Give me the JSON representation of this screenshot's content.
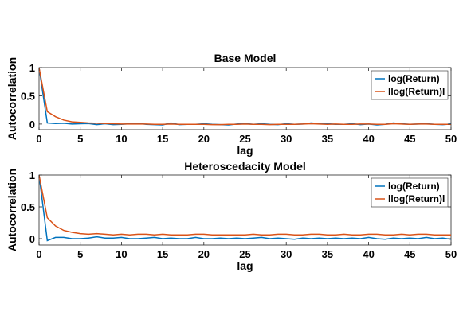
{
  "chart_data": [
    {
      "type": "line",
      "title": "Base Model",
      "xlabel": "lag",
      "ylabel": "Autocorrelation",
      "xlim": [
        0,
        50
      ],
      "ylim": [
        -0.1,
        1
      ],
      "xticks": [
        0,
        5,
        10,
        15,
        20,
        25,
        30,
        35,
        40,
        45,
        50
      ],
      "yticks": [
        0,
        0.5,
        1
      ],
      "grid": false,
      "legend_position": "top-right",
      "x": [
        0,
        1,
        2,
        3,
        4,
        5,
        6,
        7,
        8,
        9,
        10,
        11,
        12,
        13,
        14,
        15,
        16,
        17,
        18,
        19,
        20,
        21,
        22,
        23,
        24,
        25,
        26,
        27,
        28,
        29,
        30,
        31,
        32,
        33,
        34,
        35,
        36,
        37,
        38,
        39,
        40,
        41,
        42,
        43,
        44,
        45,
        46,
        47,
        48,
        49,
        50
      ],
      "series": [
        {
          "name": "log(Return)",
          "color": "#0072BD",
          "values": [
            1,
            0.02,
            0.01,
            0.015,
            0.0,
            0.005,
            0.01,
            -0.01,
            0.005,
            -0.01,
            -0.005,
            0.005,
            0.015,
            -0.005,
            -0.01,
            -0.015,
            0.02,
            -0.01,
            -0.005,
            -0.005,
            0.005,
            -0.005,
            -0.01,
            -0.015,
            0.0,
            0.01,
            -0.005,
            0.005,
            -0.005,
            -0.01,
            0.005,
            -0.005,
            0.0,
            0.02,
            0.01,
            0.005,
            -0.005,
            -0.005,
            0.005,
            -0.01,
            0.0,
            -0.015,
            -0.005,
            0.02,
            0.005,
            -0.005,
            0.0,
            0.005,
            -0.005,
            -0.01,
            0.0
          ]
        },
        {
          "name": "llog(Return)l",
          "color": "#D95319",
          "values": [
            1,
            0.22,
            0.13,
            0.07,
            0.04,
            0.03,
            0.02,
            0.015,
            0.01,
            0.005,
            0.0,
            0.0,
            0.0,
            0.0,
            -0.005,
            -0.005,
            0.0,
            -0.005,
            -0.005,
            -0.005,
            -0.005,
            -0.01,
            -0.01,
            -0.005,
            -0.005,
            0.0,
            -0.005,
            -0.005,
            -0.01,
            -0.005,
            -0.005,
            -0.005,
            0.0,
            0.005,
            0.0,
            -0.005,
            0.0,
            -0.005,
            -0.005,
            0.0,
            0.0,
            -0.005,
            -0.005,
            0.005,
            0.0,
            -0.005,
            0.0,
            0.0,
            -0.005,
            -0.005,
            -0.005
          ]
        }
      ]
    },
    {
      "type": "line",
      "title": "Heteroscedacity Model",
      "xlabel": "lag",
      "ylabel": "Autocorrelation",
      "xlim": [
        0,
        50
      ],
      "ylim": [
        -0.1,
        1
      ],
      "xticks": [
        0,
        5,
        10,
        15,
        20,
        25,
        30,
        35,
        40,
        45,
        50
      ],
      "yticks": [
        0,
        0.5,
        1
      ],
      "grid": false,
      "legend_position": "top-right",
      "x": [
        0,
        1,
        2,
        3,
        4,
        5,
        6,
        7,
        8,
        9,
        10,
        11,
        12,
        13,
        14,
        15,
        16,
        17,
        18,
        19,
        20,
        21,
        22,
        23,
        24,
        25,
        26,
        27,
        28,
        29,
        30,
        31,
        32,
        33,
        34,
        35,
        36,
        37,
        38,
        39,
        40,
        41,
        42,
        43,
        44,
        45,
        46,
        47,
        48,
        49,
        50
      ],
      "series": [
        {
          "name": "log(Return)",
          "color": "#0072BD",
          "values": [
            1,
            -0.03,
            0.02,
            0.02,
            0.0,
            0.0,
            0.01,
            0.03,
            0.01,
            0.01,
            0.02,
            0.0,
            0.0,
            0.01,
            0.02,
            0.0,
            0.01,
            0.0,
            0.0,
            0.02,
            0.0,
            0.0,
            0.01,
            0.0,
            0.01,
            0.0,
            0.01,
            0.02,
            0.0,
            0.01,
            0.0,
            -0.01,
            0.01,
            0.0,
            0.01,
            0.0,
            0.01,
            0.0,
            0.01,
            0.0,
            0.02,
            0.0,
            -0.01,
            0.01,
            0.0,
            0.01,
            0.0,
            0.02,
            0.0,
            0.01,
            -0.01
          ]
        },
        {
          "name": "llog(Return)l",
          "color": "#D95319",
          "values": [
            1,
            0.33,
            0.2,
            0.13,
            0.1,
            0.08,
            0.07,
            0.08,
            0.07,
            0.06,
            0.07,
            0.06,
            0.07,
            0.07,
            0.06,
            0.07,
            0.06,
            0.06,
            0.06,
            0.07,
            0.07,
            0.06,
            0.06,
            0.06,
            0.06,
            0.06,
            0.07,
            0.06,
            0.06,
            0.07,
            0.07,
            0.06,
            0.06,
            0.07,
            0.07,
            0.06,
            0.06,
            0.07,
            0.06,
            0.06,
            0.07,
            0.07,
            0.06,
            0.06,
            0.07,
            0.06,
            0.07,
            0.07,
            0.06,
            0.06,
            0.06
          ]
        }
      ]
    }
  ]
}
